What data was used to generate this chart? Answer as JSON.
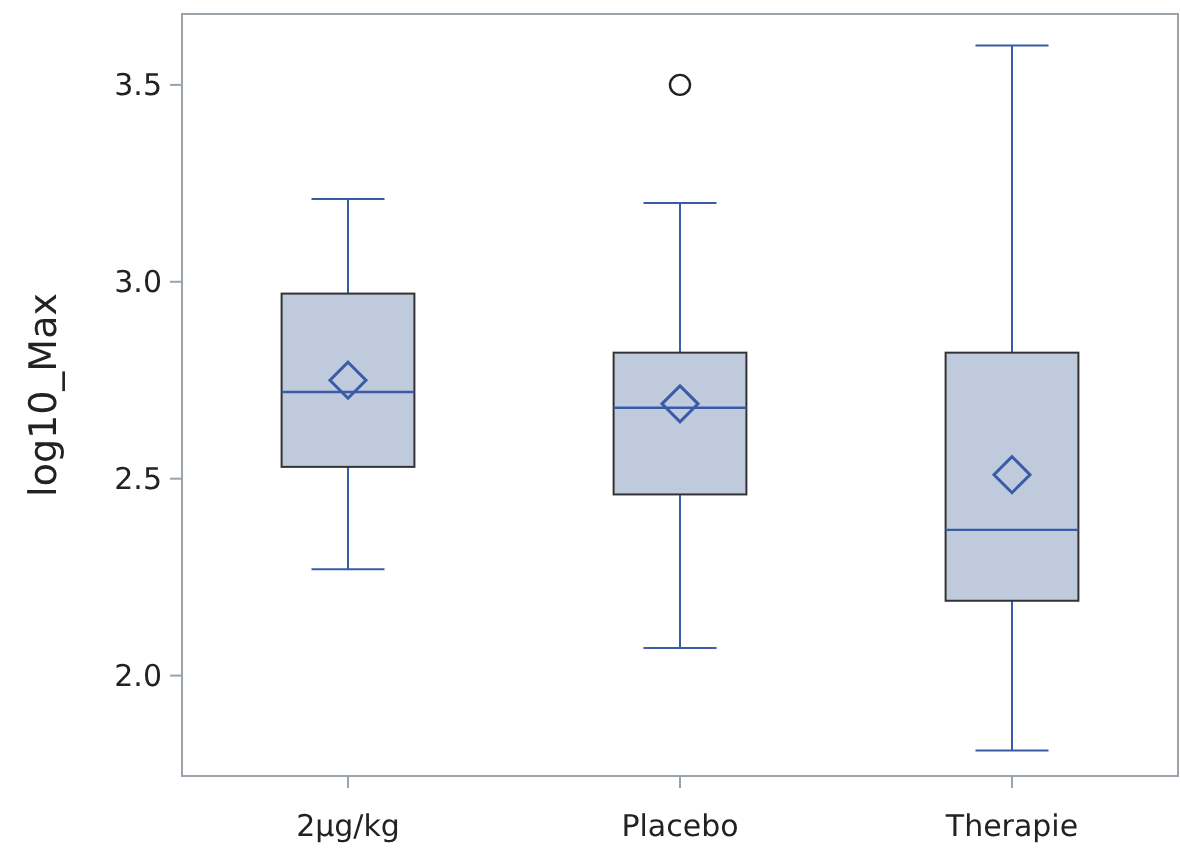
{
  "chart_data": {
    "type": "box",
    "ylabel": "log10_Max",
    "categories": [
      "2µg/kg",
      "Placebo",
      "Therapie"
    ],
    "boxes": [
      {
        "low": 2.27,
        "q1": 2.53,
        "median": 2.72,
        "q3": 2.97,
        "high": 3.21,
        "mean": 2.75
      },
      {
        "low": 2.07,
        "q1": 2.46,
        "median": 2.68,
        "q3": 2.82,
        "high": 3.2,
        "mean": 2.69,
        "outliers": [
          3.5
        ]
      },
      {
        "low": 1.81,
        "q1": 2.19,
        "median": 2.37,
        "q3": 2.82,
        "high": 3.6,
        "mean": 2.51
      }
    ],
    "color": "#bfcadc",
    "ylim": [
      1.745,
      3.68
    ],
    "yticks": [
      {
        "value": 2,
        "label": "2.0"
      },
      2.5,
      {
        "value": 3,
        "label": "3.0"
      },
      3.5
    ],
    "grid": false,
    "marker": "diamond"
  }
}
